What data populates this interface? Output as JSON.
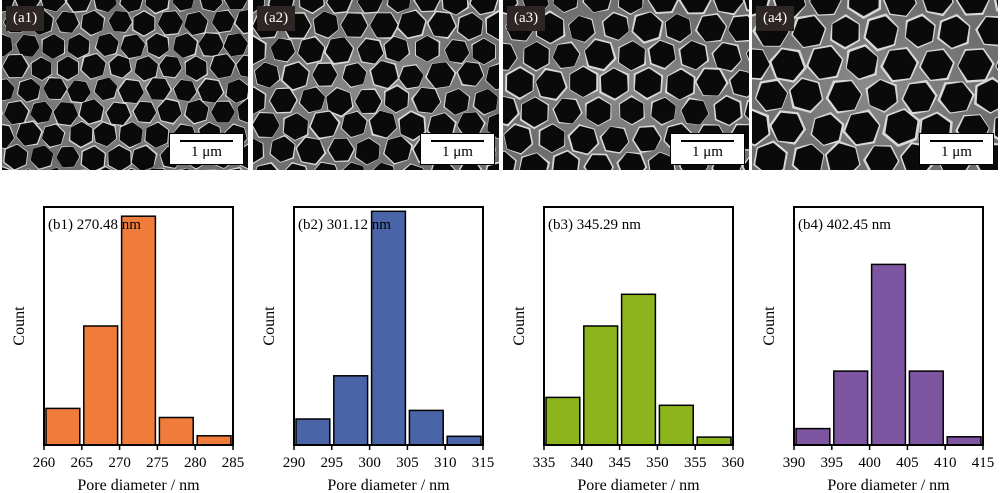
{
  "sem_images": [
    {
      "label": "(a1)",
      "scale_text": "1 μm"
    },
    {
      "label": "(a2)",
      "scale_text": "1 μm"
    },
    {
      "label": "(a3)",
      "scale_text": "1 μm"
    },
    {
      "label": "(a4)",
      "scale_text": "1 μm"
    }
  ],
  "chart_data": [
    {
      "type": "bar",
      "annotation": "(b1) 270.48 nm",
      "xlabel": "Pore diameter / nm",
      "ylabel": "Count",
      "xlim": [
        260,
        285
      ],
      "xticks": [
        "260",
        "265",
        "270",
        "275",
        "280",
        "285"
      ],
      "bins": [
        [
          260,
          265
        ],
        [
          265,
          270
        ],
        [
          270,
          275
        ],
        [
          275,
          280
        ],
        [
          280,
          285
        ]
      ],
      "values": [
        4,
        13,
        25,
        3,
        1
      ],
      "ylim": [
        0,
        26
      ],
      "color": "#f07c3c"
    },
    {
      "type": "bar",
      "annotation": "(b2) 301.12 nm",
      "xlabel": "Pore diameter / nm",
      "ylabel": "Count",
      "xlim": [
        290,
        315
      ],
      "xticks": [
        "290",
        "295",
        "300",
        "305",
        "310",
        "315"
      ],
      "bins": [
        [
          290,
          295
        ],
        [
          295,
          300
        ],
        [
          300,
          305
        ],
        [
          305,
          310
        ],
        [
          310,
          315
        ]
      ],
      "values": [
        3,
        8,
        27,
        4,
        1
      ],
      "ylim": [
        0,
        27.5
      ],
      "color": "#4a64a8"
    },
    {
      "type": "bar",
      "annotation": "(b3) 345.29 nm",
      "xlabel": "Pore diameter / nm",
      "ylabel": "Count",
      "xlim": [
        335,
        360
      ],
      "xticks": [
        "335",
        "340",
        "345",
        "350",
        "355",
        "360"
      ],
      "bins": [
        [
          335,
          340
        ],
        [
          340,
          345
        ],
        [
          345,
          350
        ],
        [
          350,
          355
        ],
        [
          355,
          360
        ]
      ],
      "values": [
        6,
        15,
        19,
        5,
        1
      ],
      "ylim": [
        0,
        30
      ],
      "color": "#8cb41c"
    },
    {
      "type": "bar",
      "annotation": "(b4) 402.45 nm",
      "xlabel": "Pore diameter / nm",
      "ylabel": "Count",
      "xlim": [
        390,
        415
      ],
      "xticks": [
        "390",
        "395",
        "400",
        "405",
        "410",
        "415"
      ],
      "bins": [
        [
          390,
          395
        ],
        [
          395,
          400
        ],
        [
          400,
          405
        ],
        [
          405,
          410
        ],
        [
          410,
          415
        ]
      ],
      "values": [
        2,
        9,
        22,
        9,
        1
      ],
      "ylim": [
        0,
        29
      ],
      "color": "#7e55a0"
    }
  ]
}
